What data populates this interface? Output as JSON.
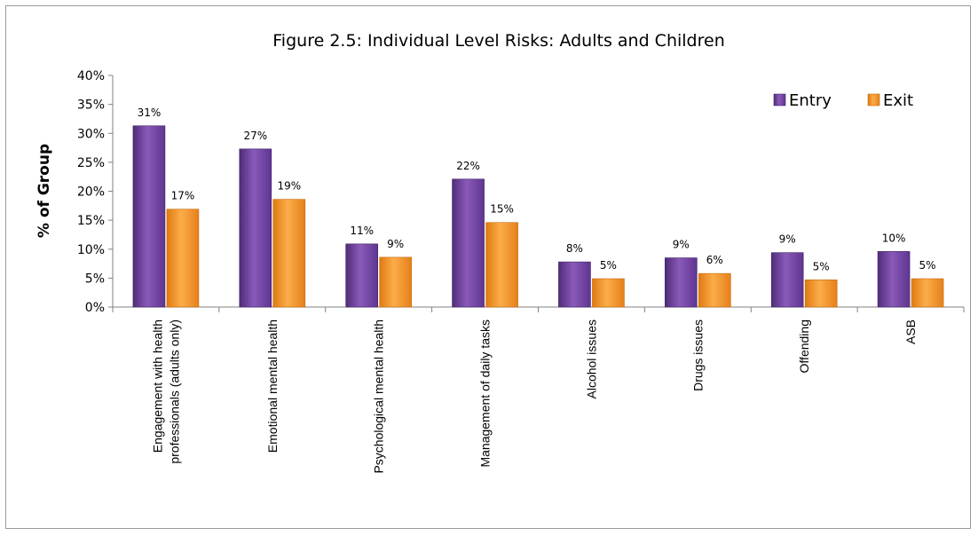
{
  "chart_data": {
    "type": "bar",
    "title": "Figure 2.5: Individual Level Risks: Adults and Children",
    "ylabel": "% of Group",
    "xlabel": "",
    "ylim": [
      0,
      40
    ],
    "yticks": [
      "0%",
      "5%",
      "10%",
      "15%",
      "20%",
      "25%",
      "30%",
      "35%",
      "40%"
    ],
    "grid": false,
    "legend_position": "top-right",
    "categories": [
      [
        "Engagement with health",
        "professionals (adults only)"
      ],
      [
        "Emotional mental health"
      ],
      [
        "Psychological mental health"
      ],
      [
        "Management of daily tasks"
      ],
      [
        "Alcohol issues"
      ],
      [
        "Drugs issues"
      ],
      [
        "Offending"
      ],
      [
        "ASB"
      ]
    ],
    "series": [
      {
        "name": "Entry",
        "color": "#7b4fa8",
        "values": [
          31.3,
          27.3,
          10.9,
          22.1,
          7.8,
          8.5,
          9.4,
          9.6
        ],
        "labels": [
          "31%",
          "27%",
          "11%",
          "22%",
          "8%",
          "9%",
          "9%",
          "10%"
        ]
      },
      {
        "name": "Exit",
        "color": "#f29222",
        "values": [
          16.9,
          18.6,
          8.6,
          14.6,
          4.9,
          5.8,
          4.7,
          4.9
        ],
        "labels": [
          "17%",
          "19%",
          "9%",
          "15%",
          "5%",
          "6%",
          "5%",
          "5%"
        ]
      }
    ]
  }
}
